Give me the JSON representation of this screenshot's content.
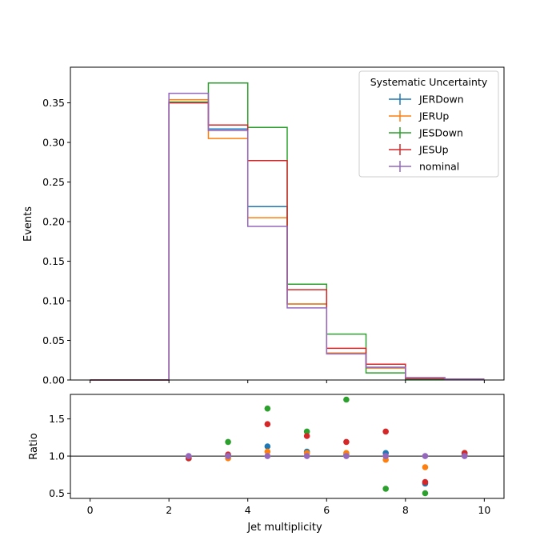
{
  "chart_data": [
    {
      "type": "line",
      "step": "histogram",
      "ylabel": "Events",
      "xlim": [
        -0.5,
        10.5
      ],
      "ylim": [
        0,
        0.395
      ],
      "yticks": [
        "0.00",
        "0.05",
        "0.10",
        "0.15",
        "0.20",
        "0.25",
        "0.30",
        "0.35"
      ],
      "bin_edges": [
        0,
        1,
        2,
        3,
        4,
        5,
        6,
        7,
        8,
        9,
        10
      ],
      "legend": {
        "title": "Systematic Uncertainty",
        "placement": "top-right"
      },
      "series": [
        {
          "name": "JERDown",
          "color": "#1f77b4",
          "values": [
            0,
            0,
            0.35,
            0.317,
            0.219,
            0.096,
            0.034,
            0.016,
            0.002,
            0.001
          ]
        },
        {
          "name": "JERUp",
          "color": "#ff7f0e",
          "values": [
            0,
            0,
            0.354,
            0.305,
            0.205,
            0.096,
            0.034,
            0.015,
            0.002,
            0.001
          ]
        },
        {
          "name": "JESDown",
          "color": "#2ca02c",
          "values": [
            0,
            0,
            0.351,
            0.375,
            0.319,
            0.121,
            0.058,
            0.009,
            0.001,
            0.001
          ]
        },
        {
          "name": "JESUp",
          "color": "#d62728",
          "values": [
            0,
            0,
            0.35,
            0.322,
            0.277,
            0.114,
            0.04,
            0.02,
            0.002,
            0.001
          ]
        },
        {
          "name": "nominal",
          "color": "#9467bd",
          "values": [
            0,
            0,
            0.362,
            0.315,
            0.194,
            0.091,
            0.033,
            0.016,
            0.003,
            0.001
          ]
        }
      ]
    },
    {
      "type": "scatter",
      "xlabel": "Jet multiplicity",
      "ylabel": "Ratio",
      "xlim": [
        -0.5,
        10.5
      ],
      "ylim": [
        0.43,
        1.83
      ],
      "xticks": [
        "0",
        "2",
        "4",
        "6",
        "8",
        "10"
      ],
      "yticks": [
        "0.5",
        "1.0",
        "1.5"
      ],
      "reference_line": 1.0,
      "x": [
        2.5,
        3.5,
        4.5,
        5.5,
        6.5,
        7.5,
        8.5,
        9.5
      ],
      "series": [
        {
          "name": "JERDown",
          "color": "#1f77b4",
          "values": [
            0.97,
            1.01,
            1.13,
            1.06,
            1.02,
            1.04,
            0.63,
            1.01
          ]
        },
        {
          "name": "JERUp",
          "color": "#ff7f0e",
          "values": [
            0.98,
            0.97,
            1.06,
            1.04,
            1.04,
            0.95,
            0.85,
            1.01
          ]
        },
        {
          "name": "JESDown",
          "color": "#2ca02c",
          "values": [
            0.97,
            1.19,
            1.64,
            1.33,
            1.76,
            0.56,
            0.5,
            1.04
          ]
        },
        {
          "name": "JESUp",
          "color": "#d62728",
          "values": [
            0.97,
            1.02,
            1.43,
            1.27,
            1.19,
            1.33,
            0.65,
            1.04
          ]
        },
        {
          "name": "nominal",
          "color": "#9467bd",
          "values": [
            1.0,
            1.0,
            1.0,
            1.0,
            1.0,
            1.0,
            1.0,
            1.0
          ]
        }
      ]
    }
  ]
}
